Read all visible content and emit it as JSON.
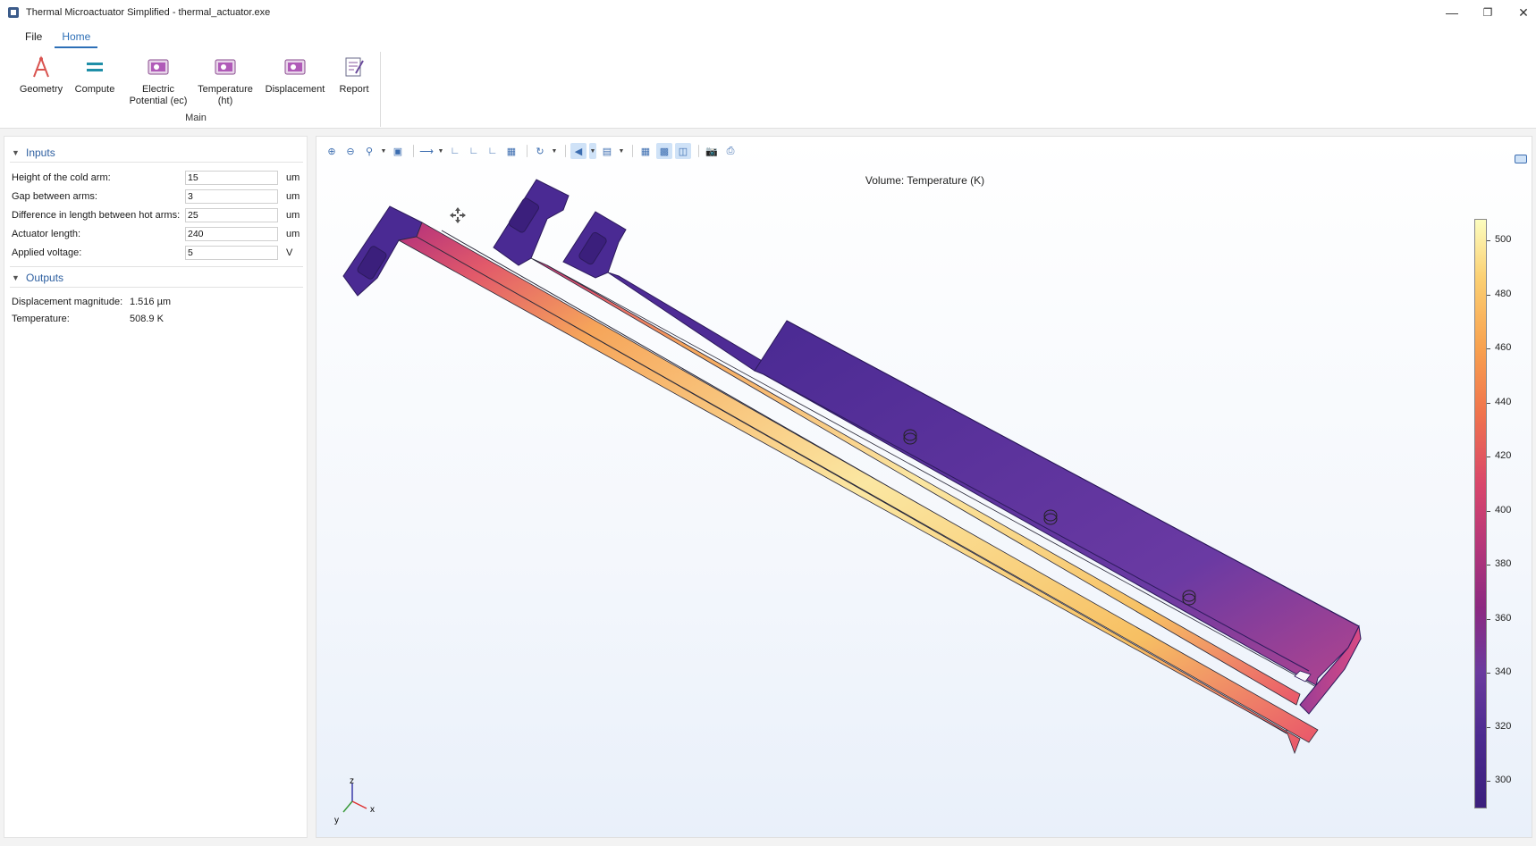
{
  "window": {
    "title": "Thermal Microactuator Simplified - thermal_actuator.exe",
    "minimize": "—",
    "restore": "❐",
    "close": "✕"
  },
  "menu": {
    "tabs": [
      {
        "label": "File"
      },
      {
        "label": "Home"
      }
    ]
  },
  "ribbon": {
    "group_label": "Main",
    "buttons": [
      {
        "label": "Geometry",
        "icon": "geometry-icon"
      },
      {
        "label": "Compute",
        "icon": "compute-icon"
      },
      {
        "label": "Electric\nPotential (ec)",
        "icon": "plot-icon"
      },
      {
        "label": "Temperature\n(ht)",
        "icon": "plot-icon"
      },
      {
        "label": "Displacement",
        "icon": "plot-icon"
      },
      {
        "label": "Report",
        "icon": "report-icon"
      }
    ]
  },
  "inputs": {
    "heading": "Inputs",
    "fields": [
      {
        "label": "Height of the cold arm:",
        "value": "15",
        "unit": "um"
      },
      {
        "label": "Gap between arms:",
        "value": "3",
        "unit": "um"
      },
      {
        "label": "Difference in length between hot arms:",
        "value": "25",
        "unit": "um"
      },
      {
        "label": "Actuator length:",
        "value": "240",
        "unit": "um"
      },
      {
        "label": "Applied voltage:",
        "value": "5",
        "unit": "V"
      }
    ]
  },
  "outputs": {
    "heading": "Outputs",
    "fields": [
      {
        "label": "Displacement magnitude:",
        "value": "1.516 µm"
      },
      {
        "label": "Temperature:",
        "value": "508.9 K"
      }
    ]
  },
  "graphics": {
    "plot_title": "Volume: Temperature (K)",
    "colorbar_ticks": [
      "500",
      "480",
      "460",
      "440",
      "420",
      "400",
      "380",
      "360",
      "340",
      "320",
      "300"
    ],
    "axis_labels": {
      "z": "z",
      "y": "y",
      "x": "x"
    },
    "accent": "#2d6fb7"
  }
}
